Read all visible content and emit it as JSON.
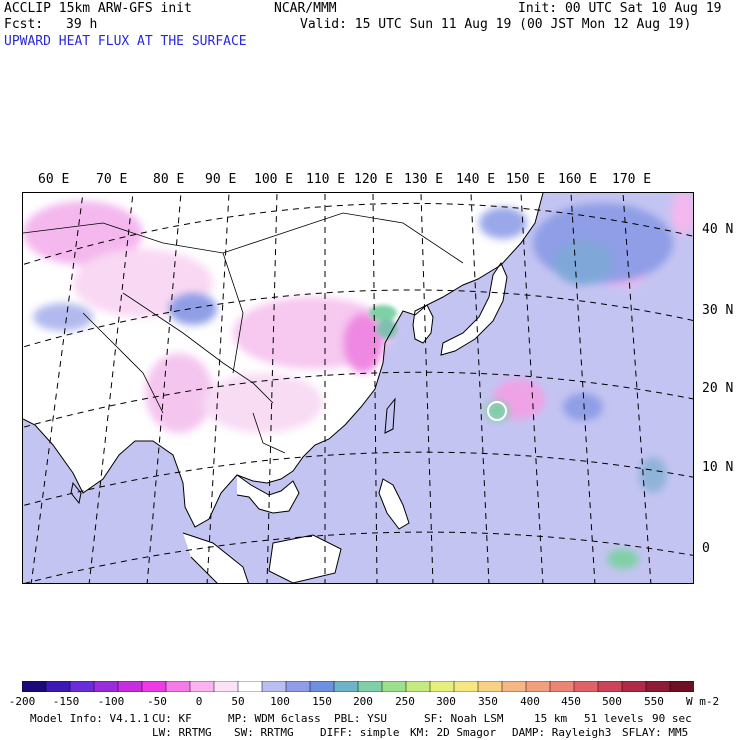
{
  "header": {
    "model_line": "ACCLIP 15km ARW-GFS init",
    "fcst_label": "Fcst:",
    "fcst_value": "39 h",
    "center": "NCAR/MMM",
    "init": "Init: 00 UTC Sat 10 Aug 19",
    "valid": "Valid: 15 UTC Sun 11 Aug 19 (00 JST Mon 12 Aug 19)",
    "field_title": "UPWARD HEAT FLUX AT THE SURFACE"
  },
  "map": {
    "longitude_labels": [
      "60 E",
      "70 E",
      "80 E",
      "90 E",
      "100 E",
      "110 E",
      "120 E",
      "130 E",
      "140 E",
      "150 E",
      "160 E",
      "170 E"
    ],
    "latitude_labels": [
      "40 N",
      "30 N",
      "20 N",
      "10 N",
      "0"
    ],
    "colors": {
      "ocean_fill": "#c4c4f2",
      "land_fill": "#ffffff",
      "negative_flux": "#f2a8ee",
      "positive_flux": "#7fd0a6",
      "coastline": "#000000"
    }
  },
  "colorbar": {
    "tick_labels": [
      "-200",
      "-150",
      "-100",
      "-50",
      "0",
      "50",
      "100",
      "150",
      "200",
      "250",
      "300",
      "350",
      "400",
      "450",
      "500",
      "550"
    ],
    "units": "W m-2",
    "colors": [
      "#1c0a7a",
      "#3c1ab4",
      "#6a2ddb",
      "#9a2cde",
      "#c82de0",
      "#ef3be6",
      "#f77ae9",
      "#fbb3ef",
      "#fde1f7",
      "#ffffff",
      "#b9bff0",
      "#8f9ee6",
      "#6f8fe0",
      "#6db4c9",
      "#7fd0a6",
      "#9ce08e",
      "#c4eb80",
      "#e4f07a",
      "#f6e880",
      "#f8d184",
      "#f5b884",
      "#f29f7f",
      "#ec8576",
      "#e0636a",
      "#cc4457",
      "#b02a45",
      "#8f1b34",
      "#6e0f22"
    ]
  },
  "model_info": {
    "line1": [
      "Model Info: V4.1.1",
      "CU: KF",
      "MP: WDM 6class",
      "PBL: YSU",
      "SF: Noah LSM",
      "15 km",
      "51 levels",
      "90 sec"
    ],
    "line2": [
      "LW: RRTMG",
      "SW: RRTMG",
      "DIFF: simple",
      "KM: 2D Smagor",
      "DAMP: Rayleigh3",
      "SFLAY: MM5"
    ]
  }
}
